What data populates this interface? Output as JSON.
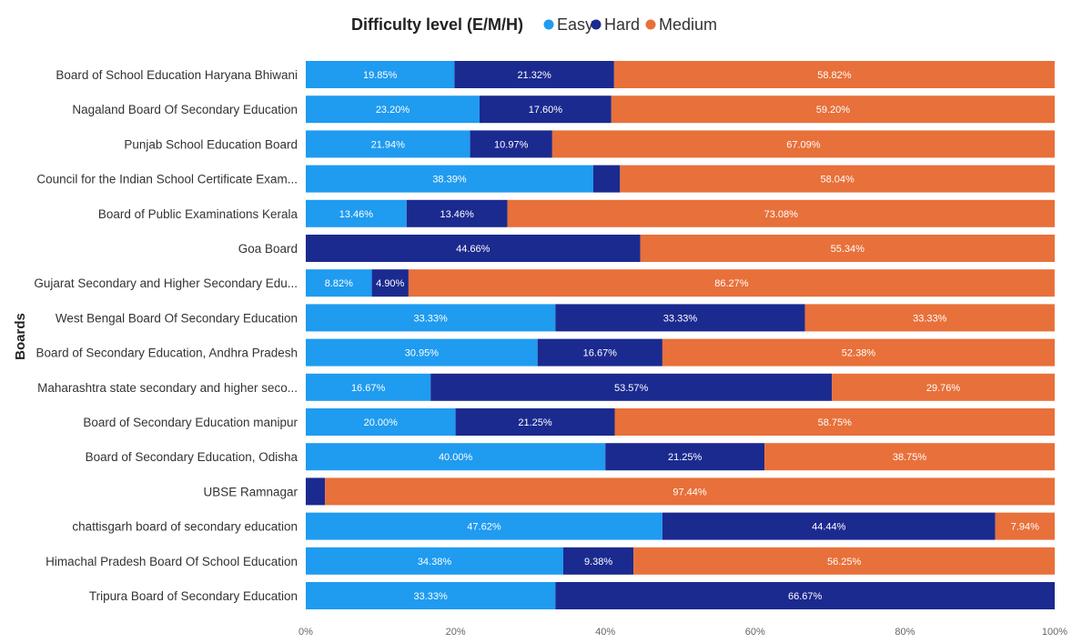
{
  "chart_data": {
    "type": "bar",
    "orientation": "horizontal",
    "stacked": "100%",
    "legend": {
      "title": "Difficulty level (E/M/H)",
      "placement": "top"
    },
    "ylabel": "Boards",
    "xlim": [
      0,
      100
    ],
    "x_ticks": [
      "0%",
      "20%",
      "40%",
      "60%",
      "80%",
      "100%"
    ],
    "grid": false,
    "colors": {
      "Easy": "#1f9bf0",
      "Hard": "#1b2a8f",
      "Medium": "#e8703a"
    },
    "categories": [
      "Board of School Education Haryana Bhiwani",
      "Nagaland Board Of Secondary Education",
      "Punjab School Education Board",
      "Council for the Indian School Certificate Exam...",
      "Board of Public Examinations Kerala",
      "Goa Board",
      "Gujarat Secondary and Higher Secondary Edu...",
      "West Bengal Board Of Secondary Education",
      "Board of Secondary Education, Andhra Pradesh",
      "Maharashtra state secondary and higher seco...",
      "Board of Secondary Education manipur",
      "Board of Secondary Education, Odisha",
      "UBSE Ramnagar",
      "chattisgarh board of secondary education",
      "Himachal Pradesh Board Of School Education",
      "Tripura Board of Secondary Education"
    ],
    "series": [
      {
        "name": "Easy",
        "values": [
          19.85,
          23.2,
          21.94,
          38.39,
          13.46,
          0,
          8.82,
          33.33,
          30.95,
          16.67,
          20.0,
          40.0,
          0,
          47.62,
          34.38,
          33.33
        ],
        "labels": [
          "19.85%",
          "23.20%",
          "21.94%",
          "38.39%",
          "13.46%",
          "",
          "8.82%",
          "33.33%",
          "30.95%",
          "16.67%",
          "20.00%",
          "40.00%",
          "",
          "47.62%",
          "34.38%",
          "33.33%"
        ]
      },
      {
        "name": "Hard",
        "values": [
          21.32,
          17.6,
          10.97,
          3.57,
          13.46,
          44.66,
          4.9,
          33.33,
          16.67,
          53.57,
          21.25,
          21.25,
          2.56,
          44.44,
          9.38,
          66.67
        ],
        "labels": [
          "21.32%",
          "17.60%",
          "10.97%",
          "",
          "13.46%",
          "44.66%",
          "4.90%",
          "33.33%",
          "16.67%",
          "53.57%",
          "21.25%",
          "21.25%",
          "",
          "44.44%",
          "9.38%",
          "66.67%"
        ]
      },
      {
        "name": "Medium",
        "values": [
          58.82,
          59.2,
          67.09,
          58.04,
          73.08,
          55.34,
          86.27,
          33.33,
          52.38,
          29.76,
          58.75,
          38.75,
          97.44,
          7.94,
          56.25,
          0
        ],
        "labels": [
          "58.82%",
          "59.20%",
          "67.09%",
          "58.04%",
          "73.08%",
          "55.34%",
          "86.27%",
          "33.33%",
          "52.38%",
          "29.76%",
          "58.75%",
          "38.75%",
          "97.44%",
          "7.94%",
          "56.25%",
          ""
        ]
      }
    ]
  }
}
